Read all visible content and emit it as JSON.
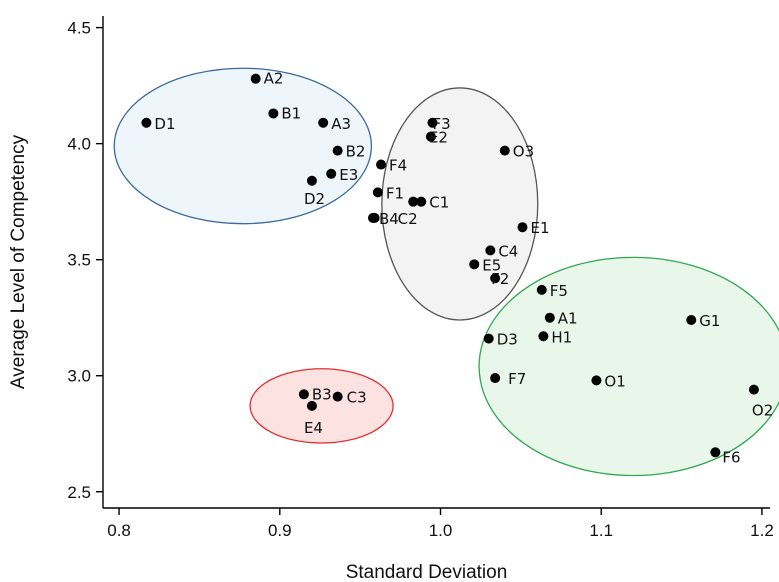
{
  "chart_data": {
    "type": "scatter",
    "title": "",
    "xlabel": "Standard Deviation",
    "ylabel": "Average Level of Competency",
    "xlim": [
      0.79,
      1.205
    ],
    "ylim": [
      2.43,
      4.55
    ],
    "xticks": [
      0.8,
      0.9,
      1.0,
      1.1,
      1.2
    ],
    "yticks": [
      2.5,
      3.0,
      3.5,
      4.0,
      4.5
    ],
    "xtick_labels": [
      "0.8",
      "0.9",
      "1.0",
      "1.1",
      "1.2"
    ],
    "ytick_labels": [
      "2.5",
      "3.0",
      "3.5",
      "4.0",
      "4.5"
    ],
    "grid": false,
    "points": [
      {
        "label": "A2",
        "x": 0.885,
        "y": 4.28
      },
      {
        "label": "D1",
        "x": 0.817,
        "y": 4.09
      },
      {
        "label": "B1",
        "x": 0.896,
        "y": 4.13
      },
      {
        "label": "A3",
        "x": 0.927,
        "y": 4.09
      },
      {
        "label": "B2",
        "x": 0.936,
        "y": 3.97
      },
      {
        "label": "E3",
        "x": 0.932,
        "y": 3.87
      },
      {
        "label": "D2",
        "x": 0.92,
        "y": 3.84
      },
      {
        "label": "F3",
        "x": 0.995,
        "y": 4.09
      },
      {
        "label": "E2",
        "x": 0.994,
        "y": 4.03
      },
      {
        "label": "O3",
        "x": 1.04,
        "y": 3.97
      },
      {
        "label": "F4",
        "x": 0.963,
        "y": 3.91
      },
      {
        "label": "F1",
        "x": 0.961,
        "y": 3.79
      },
      {
        "label": "",
        "x": 0.983,
        "y": 3.75
      },
      {
        "label": "C1",
        "x": 0.988,
        "y": 3.75
      },
      {
        "label": "B4",
        "x": 0.958,
        "y": 3.68
      },
      {
        "label": "C2",
        "x": 0.959,
        "y": 3.68
      },
      {
        "label": "E1",
        "x": 1.051,
        "y": 3.64
      },
      {
        "label": "C4",
        "x": 1.031,
        "y": 3.54
      },
      {
        "label": "E5",
        "x": 1.021,
        "y": 3.48
      },
      {
        "label": "F2",
        "x": 1.034,
        "y": 3.42
      },
      {
        "label": "F5",
        "x": 1.063,
        "y": 3.37
      },
      {
        "label": "A1",
        "x": 1.068,
        "y": 3.25
      },
      {
        "label": "G1",
        "x": 1.156,
        "y": 3.24
      },
      {
        "label": "H1",
        "x": 1.064,
        "y": 3.17
      },
      {
        "label": "D3",
        "x": 1.03,
        "y": 3.16
      },
      {
        "label": "F7",
        "x": 1.034,
        "y": 2.99
      },
      {
        "label": "O1",
        "x": 1.097,
        "y": 2.98
      },
      {
        "label": "O2",
        "x": 1.195,
        "y": 2.94
      },
      {
        "label": "F6",
        "x": 1.171,
        "y": 2.67
      },
      {
        "label": "B3",
        "x": 0.915,
        "y": 2.92
      },
      {
        "label": "C3",
        "x": 0.936,
        "y": 2.91
      },
      {
        "label": "E4",
        "x": 0.92,
        "y": 2.87
      }
    ],
    "clusters": [
      {
        "name": "blue",
        "cx": 0.877,
        "cy": 3.99,
        "rx": 0.08,
        "ry": 0.335,
        "fill": "#eef5fb",
        "stroke": "#3b6a9e"
      },
      {
        "name": "gray",
        "cx": 1.012,
        "cy": 3.74,
        "rx": 0.0485,
        "ry": 0.5,
        "fill": "#f3f3f3",
        "stroke": "#555555"
      },
      {
        "name": "green",
        "cx": 1.12,
        "cy": 3.04,
        "rx": 0.096,
        "ry": 0.47,
        "fill": "#e8f7ea",
        "stroke": "#2fa84f"
      },
      {
        "name": "red",
        "cx": 0.926,
        "cy": 2.87,
        "rx": 0.0445,
        "ry": 0.16,
        "fill": "#fde2e2",
        "stroke": "#e03030"
      }
    ],
    "colors": {
      "point": "#000000",
      "axis": "#000000"
    }
  }
}
